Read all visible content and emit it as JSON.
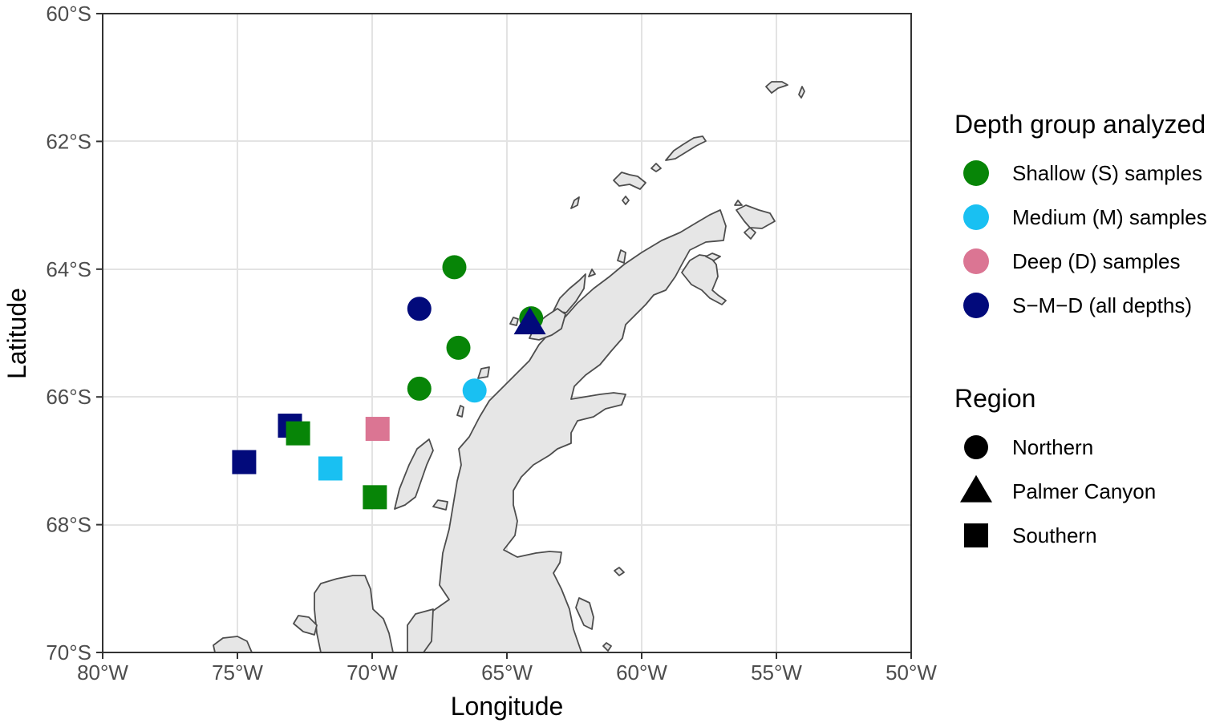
{
  "chart_data": {
    "type": "scatter",
    "title": "",
    "xlabel": "Longitude",
    "ylabel": "Latitude",
    "xlim": [
      -80,
      -50
    ],
    "ylim": [
      -70,
      -60
    ],
    "grid": true,
    "x_ticks": [
      {
        "value": -80,
        "label": "80°W"
      },
      {
        "value": -75,
        "label": "75°W"
      },
      {
        "value": -70,
        "label": "70°W"
      },
      {
        "value": -65,
        "label": "65°W"
      },
      {
        "value": -60,
        "label": "60°W"
      },
      {
        "value": -55,
        "label": "55°W"
      },
      {
        "value": -50,
        "label": "50°W"
      }
    ],
    "y_ticks": [
      {
        "value": -60,
        "label": "60°S"
      },
      {
        "value": -62,
        "label": "62°S"
      },
      {
        "value": -64,
        "label": "64°S"
      },
      {
        "value": -66,
        "label": "66°S"
      },
      {
        "value": -68,
        "label": "68°S"
      },
      {
        "value": -70,
        "label": "70°S"
      }
    ],
    "legend_position": "right",
    "legends": {
      "color": {
        "title": "Depth group analyzed",
        "items": [
          {
            "key": "S",
            "label": "Shallow (S) samples",
            "color": "#078507"
          },
          {
            "key": "M",
            "label": "Medium (M) samples",
            "color": "#19c0f2"
          },
          {
            "key": "D",
            "label": "Deep (D) samples",
            "color": "#db7593"
          },
          {
            "key": "SMD",
            "label": "S−M−D (all depths)",
            "color": "#020a7b"
          }
        ]
      },
      "shape": {
        "title": "Region",
        "items": [
          {
            "key": "circle",
            "label": "Northern"
          },
          {
            "key": "triangle",
            "label": "Palmer Canyon"
          },
          {
            "key": "square",
            "label": "Southern"
          }
        ]
      }
    },
    "points": [
      {
        "lon": -66.95,
        "lat": -63.97,
        "depth": "S",
        "region": "circle"
      },
      {
        "lon": -68.25,
        "lat": -64.62,
        "depth": "SMD",
        "region": "circle"
      },
      {
        "lon": -64.1,
        "lat": -64.77,
        "depth": "S",
        "region": "circle"
      },
      {
        "lon": -66.8,
        "lat": -65.23,
        "depth": "S",
        "region": "circle"
      },
      {
        "lon": -68.25,
        "lat": -65.87,
        "depth": "S",
        "region": "circle"
      },
      {
        "lon": -66.2,
        "lat": -65.9,
        "depth": "M",
        "region": "circle"
      },
      {
        "lon": -64.15,
        "lat": -64.85,
        "depth": "SMD",
        "region": "triangle"
      },
      {
        "lon": -73.05,
        "lat": -66.45,
        "depth": "SMD",
        "region": "square"
      },
      {
        "lon": -72.75,
        "lat": -66.57,
        "depth": "S",
        "region": "square"
      },
      {
        "lon": -69.8,
        "lat": -66.5,
        "depth": "D",
        "region": "square"
      },
      {
        "lon": -74.75,
        "lat": -67.02,
        "depth": "SMD",
        "region": "square"
      },
      {
        "lon": -71.55,
        "lat": -67.12,
        "depth": "M",
        "region": "square"
      },
      {
        "lon": -69.9,
        "lat": -67.57,
        "depth": "S",
        "region": "square"
      }
    ]
  }
}
